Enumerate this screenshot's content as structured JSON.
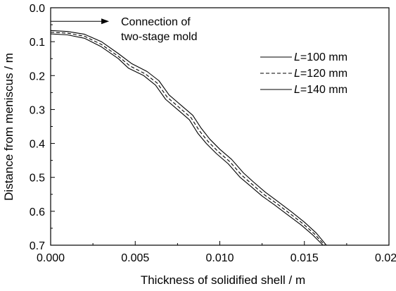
{
  "chart_data": {
    "type": "line",
    "xlabel": "Thickness of solidified shell / m",
    "ylabel": "Distance from meniscus / m",
    "xlim": [
      0.0,
      0.02
    ],
    "ylim": [
      0.0,
      0.7
    ],
    "y_inverted": true,
    "grid": false,
    "legend_position": "top-right",
    "x_ticks": [
      "0.000",
      "0.005",
      "0.010",
      "0.015",
      "0.020"
    ],
    "y_ticks": [
      "0.0",
      "0.1",
      "0.2",
      "0.3",
      "0.4",
      "0.5",
      "0.6",
      "0.7"
    ],
    "annotation": {
      "lines": [
        "Connection of",
        "two-stage mold"
      ],
      "arrow_at_y": 0.04,
      "arrow_x_range": [
        0.0,
        0.0015
      ]
    },
    "series": [
      {
        "name_prefix": "L",
        "name_suffix": "=100 mm",
        "line_style": "solid",
        "x": [
          0.0,
          0.001,
          0.002,
          0.003,
          0.004,
          0.0046,
          0.0055,
          0.0062,
          0.0068,
          0.0075,
          0.0082,
          0.0087,
          0.0092,
          0.0098,
          0.0105,
          0.0112,
          0.0118,
          0.0125,
          0.0132,
          0.014,
          0.0148,
          0.0155,
          0.0161
        ],
        "y": [
          0.077,
          0.08,
          0.09,
          0.115,
          0.15,
          0.178,
          0.2,
          0.228,
          0.27,
          0.3,
          0.33,
          0.37,
          0.4,
          0.43,
          0.46,
          0.5,
          0.525,
          0.555,
          0.58,
          0.61,
          0.64,
          0.67,
          0.7
        ]
      },
      {
        "name_prefix": "L",
        "name_suffix": "=120 mm",
        "line_style": "dashed",
        "x": [
          0.0,
          0.001,
          0.002,
          0.003,
          0.004,
          0.0047,
          0.0056,
          0.0063,
          0.0069,
          0.0076,
          0.0083,
          0.0088,
          0.0093,
          0.0099,
          0.0106,
          0.0113,
          0.0119,
          0.0126,
          0.0133,
          0.0141,
          0.0149,
          0.0156,
          0.0162
        ],
        "y": [
          0.072,
          0.075,
          0.084,
          0.108,
          0.143,
          0.172,
          0.195,
          0.222,
          0.264,
          0.294,
          0.324,
          0.363,
          0.394,
          0.424,
          0.454,
          0.494,
          0.52,
          0.55,
          0.575,
          0.605,
          0.636,
          0.667,
          0.7
        ]
      },
      {
        "name_prefix": "L",
        "name_suffix": "=140 mm",
        "line_style": "solid",
        "x": [
          0.0,
          0.001,
          0.002,
          0.003,
          0.004,
          0.0048,
          0.0057,
          0.0064,
          0.007,
          0.0077,
          0.0084,
          0.0089,
          0.0094,
          0.01,
          0.0107,
          0.0114,
          0.012,
          0.0127,
          0.0134,
          0.0142,
          0.015,
          0.0157,
          0.0163
        ],
        "y": [
          0.067,
          0.07,
          0.078,
          0.1,
          0.135,
          0.165,
          0.188,
          0.215,
          0.257,
          0.287,
          0.317,
          0.355,
          0.387,
          0.417,
          0.447,
          0.487,
          0.514,
          0.544,
          0.57,
          0.6,
          0.632,
          0.664,
          0.7
        ]
      }
    ]
  }
}
